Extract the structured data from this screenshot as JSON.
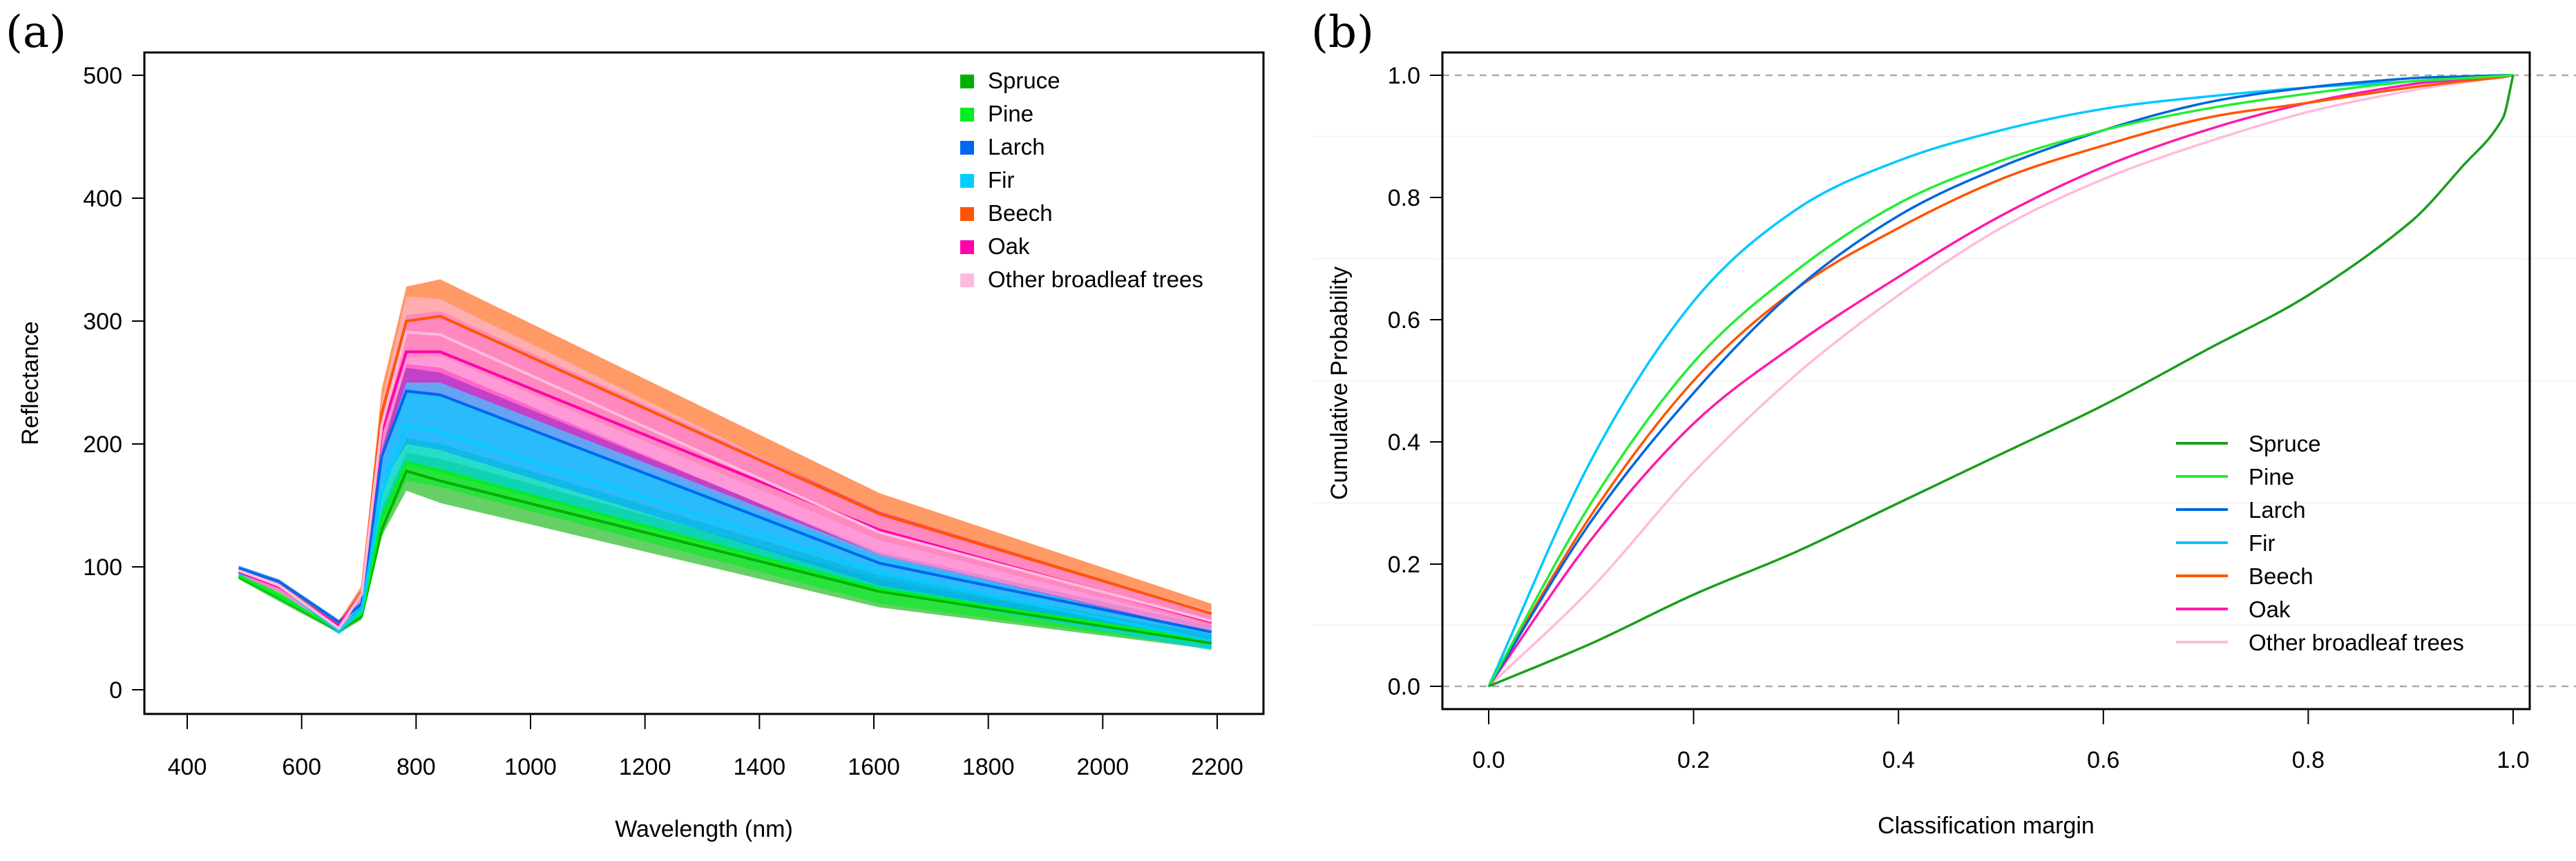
{
  "chart_data": [
    {
      "type": "area",
      "panel_label": "(a)",
      "title": "",
      "xlabel": "Wavelength (nm)",
      "ylabel": "Reflectance",
      "xlim": [
        400,
        2200
      ],
      "ylim": [
        0,
        500
      ],
      "xticks": [
        400,
        600,
        800,
        1000,
        1200,
        1400,
        1600,
        1800,
        2000,
        2200
      ],
      "yticks": [
        0,
        100,
        200,
        300,
        400,
        500
      ],
      "legend_position": "top-right",
      "x": [
        490,
        560,
        665,
        705,
        740,
        783,
        842,
        1610,
        2190
      ],
      "series": [
        {
          "name": "Spruce",
          "color": "#00b000",
          "mean": [
            92,
            75,
            48,
            60,
            130,
            178,
            170,
            80,
            38
          ],
          "lower": [
            90,
            72,
            46,
            57,
            125,
            162,
            152,
            67,
            33
          ],
          "upper": [
            95,
            79,
            51,
            65,
            148,
            193,
            188,
            90,
            42
          ]
        },
        {
          "name": "Pine",
          "color": "#00ee22",
          "mean": [
            93,
            76,
            49,
            62,
            140,
            185,
            178,
            82,
            40
          ],
          "lower": [
            90,
            73,
            47,
            58,
            130,
            170,
            165,
            70,
            34
          ],
          "upper": [
            96,
            80,
            52,
            68,
            160,
            205,
            200,
            93,
            45
          ]
        },
        {
          "name": "Larch",
          "color": "#0066ee",
          "mean": [
            99,
            88,
            55,
            70,
            190,
            243,
            240,
            103,
            47
          ],
          "lower": [
            94,
            82,
            50,
            64,
            165,
            200,
            195,
            85,
            38
          ],
          "upper": [
            101,
            90,
            57,
            76,
            200,
            262,
            258,
            112,
            52
          ]
        },
        {
          "name": "Fir",
          "color": "#00ccff",
          "mean": [
            95,
            85,
            48,
            65,
            160,
            215,
            210,
            95,
            40
          ],
          "lower": [
            92,
            80,
            45,
            60,
            140,
            185,
            180,
            80,
            32
          ],
          "upper": [
            98,
            88,
            52,
            72,
            180,
            245,
            240,
            108,
            48
          ]
        },
        {
          "name": "Beech",
          "color": "#ff5500",
          "mean": [
            97,
            85,
            52,
            80,
            225,
            300,
            304,
            143,
            62
          ],
          "lower": [
            93,
            80,
            48,
            72,
            200,
            270,
            272,
            122,
            52
          ],
          "upper": [
            100,
            89,
            56,
            85,
            245,
            328,
            334,
            160,
            70
          ]
        },
        {
          "name": "Oak",
          "color": "#ff00aa",
          "mean": [
            96,
            84,
            52,
            78,
            210,
            275,
            275,
            130,
            55
          ],
          "lower": [
            93,
            80,
            48,
            72,
            190,
            250,
            250,
            110,
            46
          ],
          "upper": [
            99,
            88,
            55,
            82,
            230,
            305,
            308,
            145,
            63
          ]
        },
        {
          "name": "Other broadleaf trees",
          "color": "#ffbbdd",
          "mean": [
            97,
            85,
            50,
            78,
            215,
            291,
            289,
            128,
            56
          ],
          "lower": [
            93,
            80,
            47,
            72,
            195,
            265,
            262,
            110,
            47
          ],
          "upper": [
            100,
            89,
            54,
            83,
            235,
            320,
            318,
            142,
            64
          ]
        }
      ]
    },
    {
      "type": "line",
      "panel_label": "(b)",
      "title": "",
      "xlabel": "Classification margin",
      "ylabel": "Cumulative Probability",
      "xlim": [
        0,
        1
      ],
      "ylim": [
        0,
        1
      ],
      "xticks": [
        "0.0",
        "0.2",
        "0.4",
        "0.6",
        "0.8",
        "1.0"
      ],
      "yticks": [
        "0.0",
        "0.2",
        "0.4",
        "0.6",
        "0.8",
        "1.0"
      ],
      "reference_lines": [
        0,
        1
      ],
      "legend_position": "bottom-right",
      "x": [
        0,
        0.1,
        0.2,
        0.3,
        0.4,
        0.5,
        0.6,
        0.7,
        0.8,
        0.9,
        0.95,
        0.99,
        1.0
      ],
      "series": [
        {
          "name": "Spruce",
          "color": "#1a9e1a",
          "values": [
            0,
            0.07,
            0.15,
            0.22,
            0.3,
            0.38,
            0.46,
            0.55,
            0.64,
            0.76,
            0.85,
            0.93,
            1.0
          ]
        },
        {
          "name": "Pine",
          "color": "#22ee33",
          "values": [
            0,
            0.3,
            0.53,
            0.68,
            0.79,
            0.86,
            0.91,
            0.945,
            0.97,
            0.99,
            0.995,
            0.999,
            1.0
          ]
        },
        {
          "name": "Larch",
          "color": "#0066dd",
          "values": [
            0,
            0.27,
            0.48,
            0.65,
            0.77,
            0.85,
            0.91,
            0.955,
            0.98,
            0.995,
            0.998,
            1.0,
            1.0
          ]
        },
        {
          "name": "Fir",
          "color": "#00c8ff",
          "values": [
            0,
            0.37,
            0.63,
            0.78,
            0.86,
            0.91,
            0.945,
            0.965,
            0.98,
            0.99,
            0.995,
            0.999,
            1.0
          ]
        },
        {
          "name": "Beech",
          "color": "#ff5500",
          "values": [
            0,
            0.28,
            0.5,
            0.65,
            0.75,
            0.83,
            0.885,
            0.93,
            0.955,
            0.98,
            0.99,
            0.997,
            1.0
          ]
        },
        {
          "name": "Oak",
          "color": "#ff1aaa",
          "values": [
            0,
            0.24,
            0.43,
            0.56,
            0.67,
            0.77,
            0.85,
            0.91,
            0.955,
            0.985,
            0.993,
            0.998,
            1.0
          ]
        },
        {
          "name": "Other broadleaf trees",
          "color": "#ffbbdd",
          "values": [
            0,
            0.16,
            0.35,
            0.51,
            0.64,
            0.75,
            0.83,
            0.89,
            0.94,
            0.975,
            0.988,
            0.997,
            1.0
          ]
        }
      ]
    }
  ]
}
